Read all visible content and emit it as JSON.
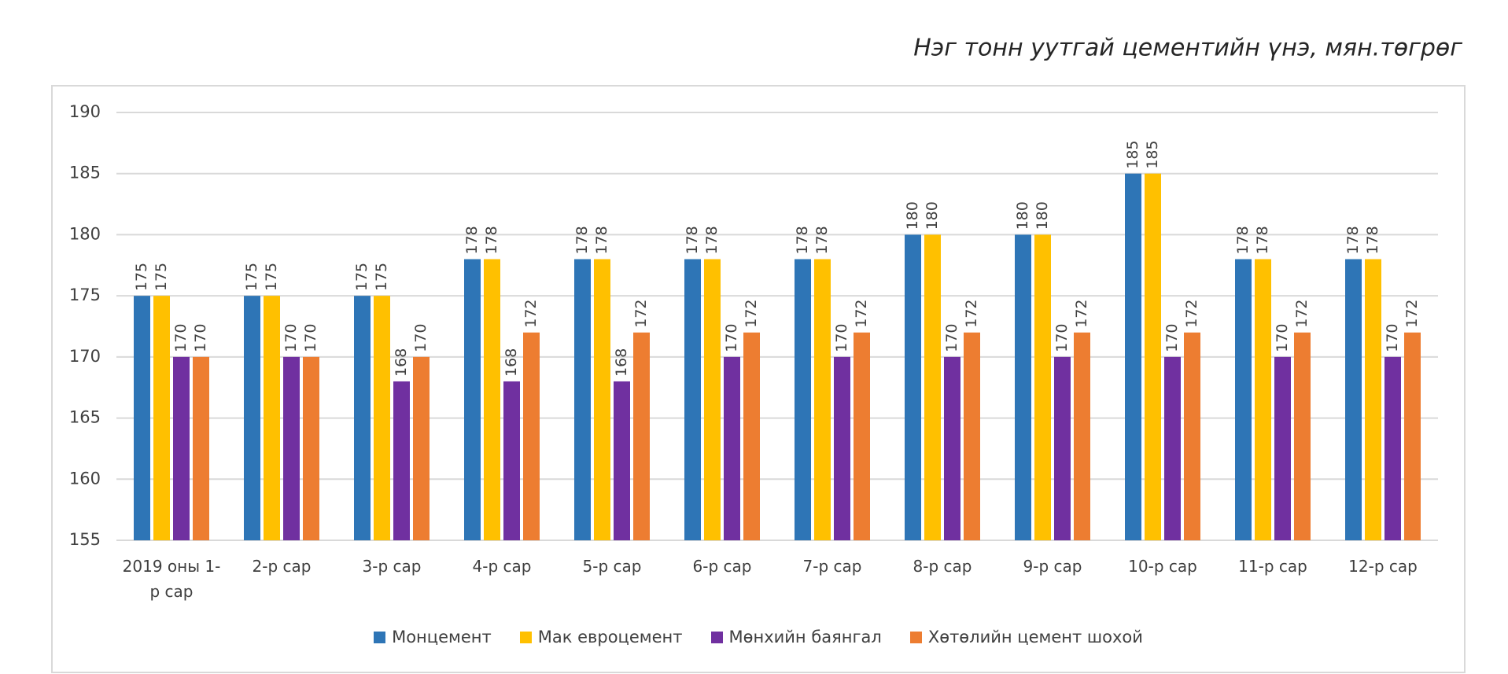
{
  "chart_data": {
    "type": "bar",
    "title": "Нэг тонн уутгай цементийн үнэ, мян.төгрөг",
    "categories": [
      "2019 оны 1-р сар",
      "2-р сар",
      "3-р сар",
      "4-р сар",
      "5-р сар",
      "6-р сар",
      "7-р сар",
      "8-р сар",
      "9-р сар",
      "10-р сар",
      "11-р сар",
      "12-р сар"
    ],
    "series": [
      {
        "name": "Монцемент",
        "color": "#2e75b6",
        "values": [
          175,
          175,
          175,
          178,
          178,
          178,
          178,
          180,
          180,
          185,
          178,
          178
        ]
      },
      {
        "name": "Мак евроцемент",
        "color": "#ffc000",
        "values": [
          175,
          175,
          175,
          178,
          178,
          178,
          178,
          180,
          180,
          185,
          178,
          178
        ]
      },
      {
        "name": "Мөнхийн баянгал",
        "color": "#7030a0",
        "values": [
          170,
          170,
          168,
          168,
          168,
          170,
          170,
          170,
          170,
          170,
          170,
          170
        ]
      },
      {
        "name": "Хөтөлийн цемент шохой",
        "color": "#ed7d31",
        "values": [
          170,
          170,
          170,
          172,
          172,
          172,
          172,
          172,
          172,
          172,
          172,
          172
        ]
      }
    ],
    "ylim": [
      155,
      190
    ],
    "yticks": [
      155,
      160,
      165,
      170,
      175,
      180,
      185,
      190
    ],
    "grid": true,
    "legend": "bottom"
  }
}
